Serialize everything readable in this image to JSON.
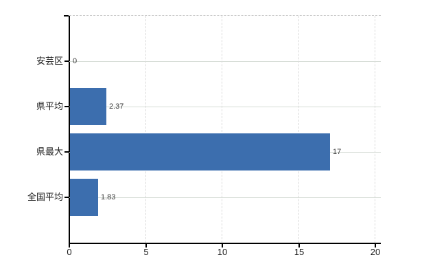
{
  "chart_data": {
    "type": "bar",
    "orientation": "horizontal",
    "categories": [
      "安芸区",
      "県平均",
      "県最大",
      "全国平均"
    ],
    "values": [
      0,
      2.37,
      17,
      1.83
    ],
    "value_labels": [
      "0",
      "2.37",
      "17",
      "1.83"
    ],
    "x_ticks": [
      0,
      5,
      10,
      15,
      20
    ],
    "xlim": [
      0,
      20.4
    ],
    "grid": {
      "horizontal": "solid",
      "vertical": "dashed"
    },
    "legend": "none",
    "colors": {
      "bar": "#3C6EAE",
      "axis": "#000000",
      "grid_horizontal": "#d6dcd6",
      "grid_vertical": "#dadada",
      "top_border": "#c9c9c9",
      "category_text": "#1a1a1a",
      "value_text": "#3a3a3a"
    }
  }
}
